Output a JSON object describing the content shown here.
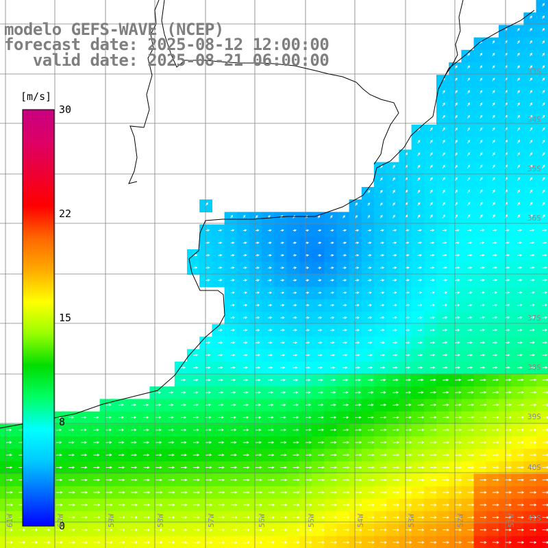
{
  "title": {
    "line1": "modelo GEFS-WAVE (NCEP)",
    "line2": "forecast date: 2025-08-12 12:00:00",
    "line3": "   valid date: 2025-08-21 06:00:00"
  },
  "colorbar": {
    "unit": "[m/s]",
    "ticks": [
      "30",
      "22",
      "15",
      "8",
      "0"
    ],
    "tick_values": [
      30,
      22,
      15,
      8,
      0
    ],
    "min": 0,
    "max": 30,
    "colors": [
      "#0000ff",
      "#0066ff",
      "#00c8ff",
      "#00ffff",
      "#00ff66",
      "#00dd00",
      "#99ff00",
      "#ffff00",
      "#ffaa00",
      "#ff6600",
      "#ff0000",
      "#ee0033",
      "#dd0066",
      "#c80080"
    ]
  },
  "map_labels": {
    "lat": [
      "33S",
      "34S",
      "35S",
      "36S",
      "37S",
      "38S",
      "39S",
      "40S",
      "41S"
    ],
    "lon": [
      "61W",
      "60W",
      "59W",
      "58W",
      "57W",
      "56W",
      "55W",
      "54W",
      "53W",
      "52W",
      "51W"
    ]
  },
  "colors": {
    "land": "#ffffff",
    "grid": "#808080",
    "coast": "#000000",
    "arrow": "#ffffff",
    "title": "#7f7f7f"
  }
}
